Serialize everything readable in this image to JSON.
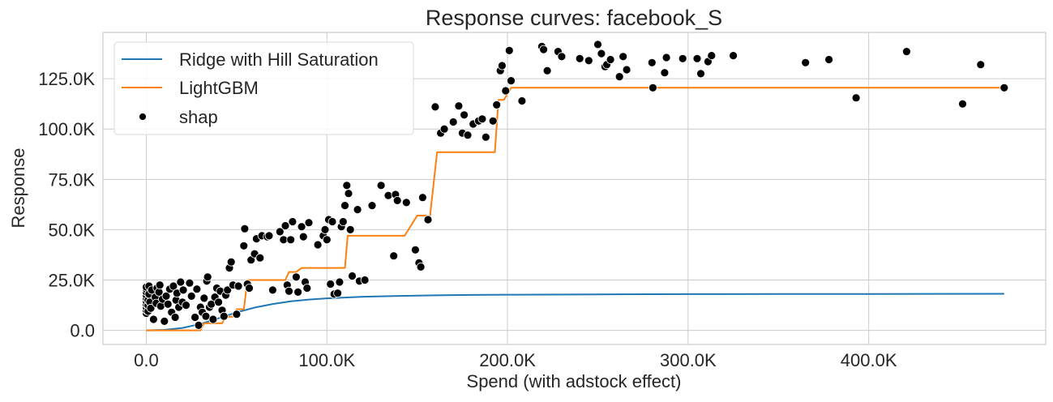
{
  "chart_data": {
    "type": "line",
    "title": "Response curves: facebook_S",
    "xlabel": "Spend (with adstock effect)",
    "ylabel": "Response",
    "xlim": [
      -24000,
      498000
    ],
    "ylim": [
      -7000,
      148000
    ],
    "grid": true,
    "legend_position": "upper-left",
    "x_ticks": [
      {
        "value": 0,
        "label": "0.0"
      },
      {
        "value": 100000,
        "label": "100.0K"
      },
      {
        "value": 200000,
        "label": "200.0K"
      },
      {
        "value": 300000,
        "label": "300.0K"
      },
      {
        "value": 400000,
        "label": "400.0K"
      }
    ],
    "y_ticks": [
      {
        "value": 0,
        "label": "0.0"
      },
      {
        "value": 25000,
        "label": "25.0K"
      },
      {
        "value": 50000,
        "label": "50.0K"
      },
      {
        "value": 75000,
        "label": "75.0K"
      },
      {
        "value": 100000,
        "label": "100.0K"
      },
      {
        "value": 125000,
        "label": "125.0K"
      }
    ],
    "series": [
      {
        "name": "Ridge with Hill Saturation",
        "kind": "line",
        "color": "#1f77b4",
        "x": [
          0,
          10000,
          20000,
          30000,
          40000,
          50000,
          60000,
          70000,
          80000,
          90000,
          100000,
          120000,
          140000,
          160000,
          180000,
          200000,
          250000,
          300000,
          350000,
          400000,
          475000
        ],
        "y": [
          0,
          250,
          1200,
          3200,
          6000,
          8900,
          11300,
          13100,
          14400,
          15300,
          15900,
          16700,
          17100,
          17400,
          17600,
          17700,
          17900,
          18000,
          18050,
          18100,
          18150
        ]
      },
      {
        "name": "LightGBM",
        "kind": "line",
        "color": "#ff7f0e",
        "x": [
          0,
          30000,
          32000,
          42000,
          44000,
          48000,
          50000,
          54000,
          56000,
          77000,
          79000,
          83000,
          86000,
          110000,
          111500,
          143000,
          150000,
          155000,
          157000,
          161000,
          193000,
          195000,
          198000,
          202000,
          475000
        ],
        "y": [
          0,
          0,
          3500,
          3500,
          6800,
          6800,
          10500,
          10500,
          25000,
          25000,
          29000,
          29000,
          31000,
          31000,
          47000,
          47000,
          57000,
          57000,
          56000,
          88500,
          88500,
          114500,
          114500,
          120500,
          120500
        ]
      },
      {
        "name": "shap",
        "kind": "scatter",
        "color": "#000000",
        "points": [
          [
            0,
            8500
          ],
          [
            0,
            10000
          ],
          [
            0,
            11500
          ],
          [
            0,
            13000
          ],
          [
            0,
            14500
          ],
          [
            0,
            16000
          ],
          [
            0,
            17500
          ],
          [
            0,
            19000
          ],
          [
            0,
            20500
          ],
          [
            0,
            21500
          ],
          [
            1000,
            9500
          ],
          [
            1000,
            12500
          ],
          [
            1000,
            15000
          ],
          [
            1500,
            18000
          ],
          [
            1500,
            22000
          ],
          [
            2000,
            14000
          ],
          [
            2500,
            11000
          ],
          [
            3000,
            20000
          ],
          [
            4000,
            5500
          ],
          [
            5000,
            16500
          ],
          [
            5500,
            13500
          ],
          [
            6000,
            21000
          ],
          [
            7000,
            19000
          ],
          [
            7500,
            22500
          ],
          [
            8000,
            12000
          ],
          [
            9000,
            15500
          ],
          [
            10000,
            4500
          ],
          [
            11000,
            17000
          ],
          [
            12000,
            13000
          ],
          [
            13000,
            20500
          ],
          [
            14000,
            9000
          ],
          [
            15000,
            22000
          ],
          [
            16000,
            6500
          ],
          [
            16500,
            15000
          ],
          [
            17000,
            18500
          ],
          [
            18000,
            11500
          ],
          [
            19000,
            24000
          ],
          [
            20000,
            14000
          ],
          [
            20500,
            20000
          ],
          [
            22000,
            12500
          ],
          [
            24000,
            23500
          ],
          [
            25000,
            17000
          ],
          [
            27000,
            6500
          ],
          [
            28000,
            20500
          ],
          [
            29000,
            2500
          ],
          [
            30000,
            11500
          ],
          [
            31000,
            9000
          ],
          [
            32000,
            16000
          ],
          [
            33000,
            7000
          ],
          [
            33500,
            24500
          ],
          [
            34000,
            26500
          ],
          [
            35000,
            11500
          ],
          [
            36000,
            13000
          ],
          [
            37000,
            5500
          ],
          [
            38000,
            16500
          ],
          [
            39000,
            21000
          ],
          [
            40000,
            14000
          ],
          [
            41000,
            19500
          ],
          [
            42000,
            10000
          ],
          [
            43000,
            7000
          ],
          [
            44000,
            17500
          ],
          [
            45000,
            20000
          ],
          [
            46000,
            31000
          ],
          [
            47000,
            34000
          ],
          [
            48000,
            22500
          ],
          [
            50000,
            8000
          ],
          [
            51000,
            22000
          ],
          [
            54000,
            42000
          ],
          [
            54500,
            50500
          ],
          [
            56000,
            23000
          ],
          [
            57000,
            21000
          ],
          [
            58000,
            35000
          ],
          [
            60000,
            38000
          ],
          [
            61000,
            45500
          ],
          [
            63000,
            36000
          ],
          [
            64000,
            47000
          ],
          [
            67000,
            46500
          ],
          [
            68000,
            47000
          ],
          [
            70000,
            20000
          ],
          [
            74000,
            49000
          ],
          [
            76000,
            45000
          ],
          [
            77000,
            52000
          ],
          [
            78000,
            22500
          ],
          [
            79000,
            19500
          ],
          [
            80000,
            45000
          ],
          [
            81000,
            54000
          ],
          [
            83000,
            26500
          ],
          [
            84000,
            19000
          ],
          [
            86000,
            51500
          ],
          [
            87000,
            46500
          ],
          [
            88000,
            24000
          ],
          [
            89000,
            21000
          ],
          [
            90000,
            53500
          ],
          [
            95000,
            42500
          ],
          [
            98000,
            47000
          ],
          [
            99000,
            50000
          ],
          [
            100000,
            45000
          ],
          [
            101000,
            55000
          ],
          [
            102000,
            23000
          ],
          [
            103000,
            54000
          ],
          [
            104000,
            18000
          ],
          [
            106000,
            18500
          ],
          [
            107000,
            24000
          ],
          [
            108000,
            51500
          ],
          [
            109000,
            54000
          ],
          [
            110000,
            62000
          ],
          [
            111000,
            72000
          ],
          [
            112000,
            68000
          ],
          [
            113000,
            50000
          ],
          [
            114000,
            27000
          ],
          [
            117000,
            60000
          ],
          [
            118000,
            24500
          ],
          [
            121000,
            25000
          ],
          [
            125000,
            62000
          ],
          [
            130000,
            72000
          ],
          [
            134000,
            67000
          ],
          [
            137000,
            37000
          ],
          [
            138000,
            67500
          ],
          [
            139000,
            64500
          ],
          [
            144000,
            63500
          ],
          [
            149000,
            40000
          ],
          [
            151000,
            33500
          ],
          [
            152000,
            31500
          ],
          [
            153000,
            66000
          ],
          [
            156000,
            55000
          ],
          [
            160000,
            111000
          ],
          [
            163000,
            98000
          ],
          [
            165000,
            100000
          ],
          [
            170000,
            103500
          ],
          [
            173000,
            111500
          ],
          [
            175000,
            98000
          ],
          [
            176000,
            107000
          ],
          [
            178000,
            97000
          ],
          [
            181000,
            102500
          ],
          [
            184000,
            104000
          ],
          [
            186000,
            105000
          ],
          [
            188000,
            96000
          ],
          [
            192000,
            104000
          ],
          [
            194000,
            112000
          ],
          [
            196000,
            129000
          ],
          [
            197000,
            131500
          ],
          [
            199000,
            119000
          ],
          [
            201000,
            139000
          ],
          [
            202000,
            124000
          ],
          [
            208000,
            114000
          ],
          [
            219000,
            141000
          ],
          [
            220000,
            139500
          ],
          [
            222000,
            129000
          ],
          [
            228000,
            138500
          ],
          [
            230000,
            136000
          ],
          [
            240000,
            135000
          ],
          [
            245000,
            134000
          ],
          [
            250000,
            142000
          ],
          [
            252000,
            137500
          ],
          [
            254000,
            131000
          ],
          [
            255000,
            132000
          ],
          [
            257000,
            134500
          ],
          [
            262000,
            126000
          ],
          [
            264000,
            136000
          ],
          [
            266000,
            129500
          ],
          [
            280000,
            133000
          ],
          [
            280500,
            120500
          ],
          [
            287000,
            128000
          ],
          [
            288000,
            135500
          ],
          [
            297000,
            135000
          ],
          [
            305000,
            135000
          ],
          [
            307000,
            127500
          ],
          [
            311000,
            133500
          ],
          [
            313000,
            136500
          ],
          [
            325000,
            136500
          ],
          [
            365000,
            133000
          ],
          [
            378000,
            134500
          ],
          [
            393000,
            115500
          ],
          [
            421000,
            138500
          ],
          [
            452000,
            112500
          ],
          [
            462000,
            132000
          ],
          [
            475000,
            120500
          ]
        ]
      }
    ]
  }
}
